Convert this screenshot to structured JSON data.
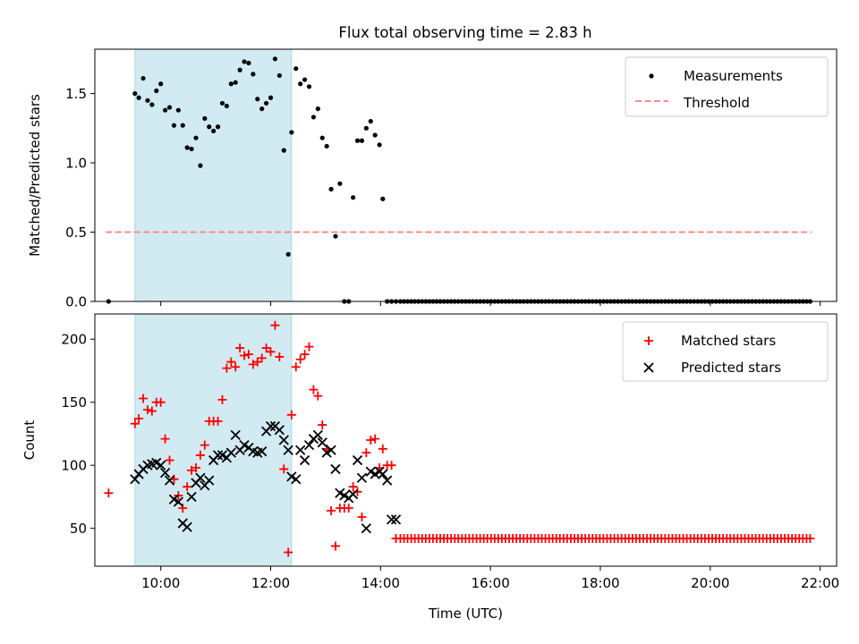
{
  "title": "Flux total observing time = 2.83 h",
  "colors": {
    "observed_band": "#add8e6",
    "matched": "#ff0000",
    "predicted": "#000000",
    "threshold": "#ff7f7f"
  },
  "chart_data": [
    {
      "type": "scatter",
      "ylabel": "Matched/Predicted stars",
      "xlim": [
        8.8,
        22.3
      ],
      "ylim": [
        0,
        1.82
      ],
      "yticks": [
        "0.0",
        "0.5",
        "1.0",
        "1.5"
      ],
      "grid": false,
      "legend_position": "top-right",
      "shaded_span": [
        9.53,
        12.38
      ],
      "threshold": {
        "name": "Threshold",
        "value": 0.5,
        "x_range": [
          9.0,
          21.85
        ]
      },
      "legend": [
        "Measurements",
        "Threshold"
      ],
      "series": [
        {
          "name": "Measurements",
          "x": [
            9.05,
            9.53,
            9.6,
            9.68,
            9.76,
            9.84,
            9.92,
            10.0,
            10.08,
            10.16,
            10.24,
            10.32,
            10.4,
            10.48,
            10.56,
            10.64,
            10.72,
            10.8,
            10.88,
            10.96,
            11.04,
            11.12,
            11.2,
            11.28,
            11.36,
            11.44,
            11.52,
            11.6,
            11.68,
            11.76,
            11.84,
            11.92,
            12.0,
            12.08,
            12.16,
            12.24,
            12.32,
            12.38,
            12.46,
            12.54,
            12.62,
            12.7,
            12.78,
            12.86,
            12.94,
            13.02,
            13.1,
            13.18,
            13.26,
            13.34,
            13.42,
            13.5,
            13.58,
            13.66,
            13.74,
            13.82,
            13.9,
            13.98,
            14.04,
            14.12,
            14.2,
            14.28
          ],
          "y": [
            0.0,
            1.5,
            1.47,
            1.61,
            1.45,
            1.42,
            1.52,
            1.57,
            1.38,
            1.4,
            1.27,
            1.38,
            1.27,
            1.11,
            1.1,
            1.18,
            0.98,
            1.32,
            1.26,
            1.23,
            1.26,
            1.43,
            1.41,
            1.57,
            1.58,
            1.67,
            1.73,
            1.72,
            1.64,
            1.46,
            1.39,
            1.43,
            1.47,
            1.75,
            1.63,
            1.09,
            0.34,
            1.22,
            1.68,
            1.57,
            1.6,
            1.55,
            1.33,
            1.39,
            1.18,
            1.12,
            0.81,
            0.47,
            0.85,
            0.0,
            0.0,
            0.75,
            1.16,
            1.16,
            1.25,
            1.3,
            1.2,
            1.13,
            0.74,
            0.0,
            0.0,
            0.0
          ]
        }
      ]
    },
    {
      "type": "scatter",
      "xlabel": "Time (UTC)",
      "ylabel": "Count",
      "xlim": [
        8.8,
        22.3
      ],
      "ylim": [
        20,
        220
      ],
      "yticks": [
        "50",
        "100",
        "150",
        "200"
      ],
      "xticks": [
        "10:00",
        "12:00",
        "14:00",
        "16:00",
        "18:00",
        "20:00",
        "22:00"
      ],
      "grid": false,
      "legend_position": "top-right",
      "shaded_span": [
        9.53,
        12.38
      ],
      "legend": [
        "Matched stars",
        "Predicted stars"
      ],
      "series": [
        {
          "name": "Matched stars",
          "x": [
            9.05,
            9.53,
            9.6,
            9.68,
            9.76,
            9.84,
            9.92,
            10.0,
            10.08,
            10.16,
            10.24,
            10.32,
            10.4,
            10.48,
            10.56,
            10.64,
            10.72,
            10.8,
            10.88,
            10.96,
            11.04,
            11.12,
            11.2,
            11.28,
            11.36,
            11.44,
            11.52,
            11.6,
            11.68,
            11.76,
            11.84,
            11.92,
            12.0,
            12.08,
            12.16,
            12.24,
            12.32,
            12.38,
            12.46,
            12.54,
            12.62,
            12.7,
            12.78,
            12.86,
            12.94,
            13.02,
            13.1,
            13.18,
            13.26,
            13.34,
            13.42,
            13.5,
            13.58,
            13.66,
            13.74,
            13.82,
            13.9,
            13.98,
            14.04,
            14.12,
            14.2,
            14.28
          ],
          "y": [
            78,
            133,
            137,
            153,
            144,
            143,
            150,
            150,
            121,
            104,
            89,
            76,
            66,
            83,
            96,
            98,
            108,
            116,
            135,
            135,
            135,
            152,
            177,
            182,
            178,
            193,
            187,
            188,
            180,
            182,
            185,
            193,
            190,
            211,
            186,
            97,
            31,
            140,
            178,
            184,
            188,
            194,
            160,
            155,
            132,
            113,
            64,
            36,
            66,
            66,
            66,
            83,
            79,
            59,
            110,
            120,
            121,
            98,
            113,
            100,
            100,
            42
          ]
        },
        {
          "name": "Predicted stars",
          "x": [
            9.53,
            9.6,
            9.68,
            9.76,
            9.84,
            9.92,
            10.0,
            10.08,
            10.16,
            10.24,
            10.32,
            10.4,
            10.48,
            10.56,
            10.64,
            10.72,
            10.8,
            10.88,
            10.96,
            11.04,
            11.12,
            11.2,
            11.28,
            11.36,
            11.44,
            11.52,
            11.6,
            11.68,
            11.76,
            11.84,
            11.92,
            12.0,
            12.08,
            12.16,
            12.24,
            12.32,
            12.38,
            12.46,
            12.54,
            12.62,
            12.7,
            12.78,
            12.86,
            12.94,
            13.02,
            13.1,
            13.18,
            13.26,
            13.34,
            13.42,
            13.5,
            13.58,
            13.66,
            13.74,
            13.82,
            13.9,
            13.98,
            14.04,
            14.12,
            14.2,
            14.28
          ],
          "y": [
            89,
            93,
            97,
            100,
            101,
            102,
            100,
            94,
            88,
            73,
            71,
            54,
            51,
            75,
            86,
            90,
            84,
            88,
            104,
            108,
            108,
            106,
            110,
            124,
            112,
            116,
            114,
            111,
            110,
            111,
            127,
            131,
            131,
            128,
            120,
            112,
            91,
            89,
            112,
            104,
            116,
            121,
            124,
            118,
            110,
            112,
            97,
            78,
            76,
            74,
            77,
            104,
            90,
            50,
            95,
            93,
            95,
            93,
            88,
            57,
            57
          ]
        }
      ]
    }
  ]
}
